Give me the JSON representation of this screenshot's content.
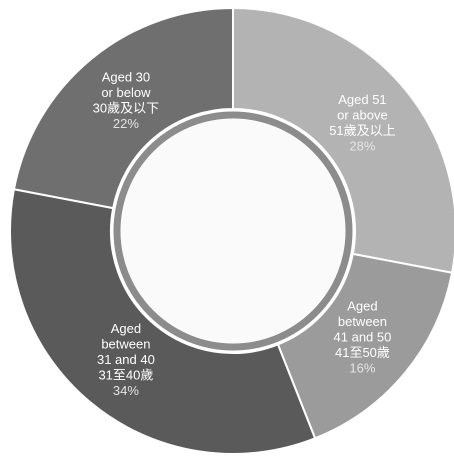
{
  "chart_data": {
    "type": "donut",
    "categories": [
      [
        "Aged 51",
        "or above",
        "51歲及以上"
      ],
      [
        "Aged",
        "between",
        "41 and 50",
        "41至50歲"
      ],
      [
        "Aged",
        "between",
        "31 and 40",
        "31至40歲"
      ],
      [
        "Aged 30",
        "or below",
        "30歲及以下"
      ]
    ],
    "values": [
      28,
      16,
      34,
      22
    ],
    "value_labels": [
      "28%",
      "16%",
      "34%",
      "22%"
    ],
    "colors": [
      "#b3b3b3",
      "#9b9b9b",
      "#5a5a5a",
      "#6f6f6f"
    ]
  }
}
